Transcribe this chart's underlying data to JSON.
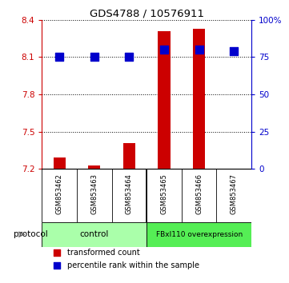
{
  "title": "GDS4788 / 10576911",
  "samples": [
    "GSM853462",
    "GSM853463",
    "GSM853464",
    "GSM853465",
    "GSM853466",
    "GSM853467"
  ],
  "transformed_counts": [
    7.29,
    7.23,
    7.41,
    8.31,
    8.33,
    7.2
  ],
  "percentile_ranks": [
    75,
    75,
    75,
    80,
    80,
    79
  ],
  "ylim_left": [
    7.2,
    8.4
  ],
  "ylim_right": [
    0,
    100
  ],
  "yticks_left": [
    7.2,
    7.5,
    7.8,
    8.1,
    8.4
  ],
  "yticks_right": [
    0,
    25,
    50,
    75,
    100
  ],
  "ytick_labels_left": [
    "7.2",
    "7.5",
    "7.8",
    "8.1",
    "8.4"
  ],
  "ytick_labels_right": [
    "0",
    "25",
    "50",
    "75",
    "100%"
  ],
  "bar_color": "#cc0000",
  "dot_color": "#0000cc",
  "background_color": "#ffffff",
  "left_axis_color": "#cc0000",
  "right_axis_color": "#0000cc",
  "bar_width": 0.35,
  "dot_size": 45,
  "legend_items": [
    "transformed count",
    "percentile rank within the sample"
  ],
  "legend_colors": [
    "#cc0000",
    "#0000cc"
  ],
  "control_color": "#aaffaa",
  "overexp_color": "#55ee55",
  "sample_bg_color": "#cccccc",
  "n_control": 3,
  "n_overexp": 3,
  "control_label": "control",
  "overexp_label": "FBxl110 overexpression",
  "protocol_label": "protocol"
}
